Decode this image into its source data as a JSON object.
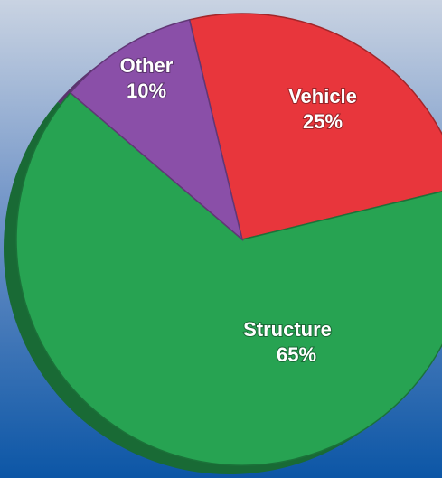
{
  "chart_data": {
    "type": "pie",
    "categories": [
      "Vehicle",
      "Structure",
      "Other"
    ],
    "values": [
      25,
      65,
      10
    ],
    "value_labels": [
      "25%",
      "65%",
      "10%"
    ],
    "colors": [
      "#e8363c",
      "#27a352",
      "#8a4fa8"
    ]
  }
}
